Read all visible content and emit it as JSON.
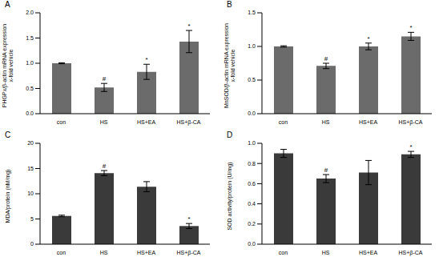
{
  "chart_data": [
    {
      "panel": "A",
      "type": "bar",
      "ylabel": [
        "PHGPx/β-actin mRNA expression",
        "x-fold vehicle"
      ],
      "categories": [
        "con",
        "HS",
        "HS+EA",
        "HS+β-CA"
      ],
      "values": [
        1.0,
        0.52,
        0.83,
        1.43
      ],
      "errors": [
        0.01,
        0.08,
        0.15,
        0.22
      ],
      "significance": [
        null,
        "#",
        "*",
        "*"
      ],
      "color": "#6b6b6b",
      "ylim": [
        0,
        2
      ],
      "yticks": [
        {
          "value": 0,
          "label": "0.0"
        },
        0.5,
        {
          "value": 1,
          "label": "1.0"
        },
        1.5,
        {
          "value": 2,
          "label": "2.0"
        }
      ]
    },
    {
      "panel": "B",
      "type": "bar",
      "ylabel": [
        "MnSOD/β-actin mRNA expression",
        "x-fold vehicle"
      ],
      "categories": [
        "con",
        "HS",
        "HS+EA",
        "HS+β-CA"
      ],
      "values": [
        1.0,
        0.71,
        1.0,
        1.15
      ],
      "errors": [
        0.01,
        0.04,
        0.05,
        0.06
      ],
      "significance": [
        null,
        "#",
        "*",
        "*"
      ],
      "color": "#6b6b6b",
      "ylim": [
        0,
        1.5
      ],
      "yticks": [
        {
          "value": 0,
          "label": "0.0"
        },
        0.5,
        {
          "value": 1,
          "label": "1.0"
        },
        1.5
      ]
    },
    {
      "panel": "C",
      "type": "bar",
      "ylabel": [
        "MDA/protein (nM/mg)"
      ],
      "categories": [
        "con",
        "HS",
        "HS+EA",
        "HS+β-CA"
      ],
      "values": [
        5.6,
        14.1,
        11.4,
        3.6
      ],
      "errors": [
        0.15,
        0.5,
        1.0,
        0.5
      ],
      "significance": [
        null,
        "#",
        null,
        "*"
      ],
      "color": "#3a3a3a",
      "ylim": [
        0,
        20
      ],
      "yticks": [
        0,
        5,
        10,
        15,
        20
      ]
    },
    {
      "panel": "D",
      "type": "bar",
      "ylabel": [
        "SOD activity/protein (U/mg)"
      ],
      "categories": [
        "con",
        "HS",
        "HS+EA",
        "HS+β-CA"
      ],
      "values": [
        0.9,
        0.65,
        0.71,
        0.89
      ],
      "errors": [
        0.04,
        0.04,
        0.12,
        0.03
      ],
      "significance": [
        null,
        "#",
        null,
        "*"
      ],
      "color": "#3a3a3a",
      "ylim": [
        0,
        1
      ],
      "yticks": [
        {
          "value": 0,
          "label": "0.0"
        },
        0.2,
        0.4,
        0.6,
        0.8,
        {
          "value": 1,
          "label": "1.0"
        }
      ]
    }
  ]
}
